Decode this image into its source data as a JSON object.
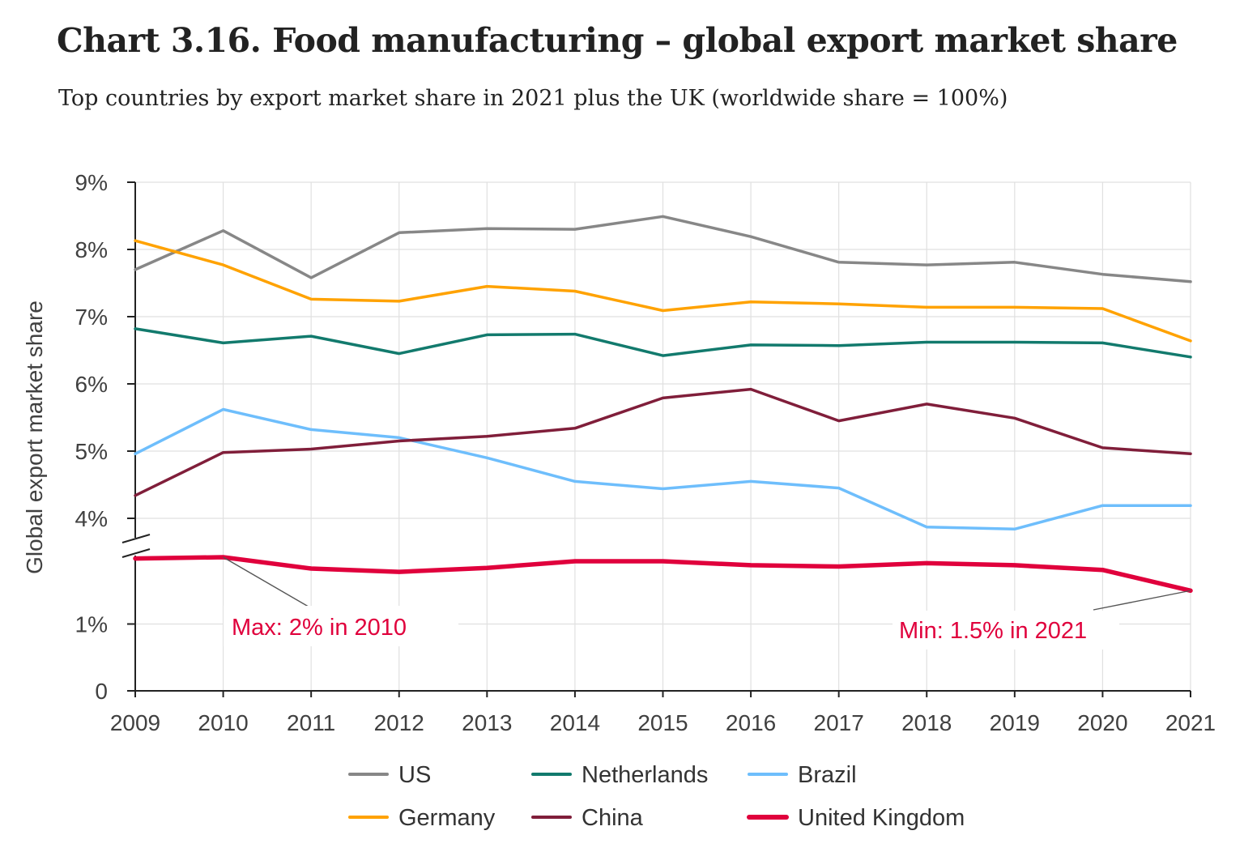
{
  "title": "Chart 3.16. Food manufacturing – global export market share",
  "subtitle": "Top countries by export market share in 2021 plus the UK (worldwide share = 100%)",
  "chart_data": {
    "type": "line",
    "ylabel": "Global export market share",
    "y_axis_break": "between 1% and 4%",
    "y_ticks": [
      "0",
      "1%",
      "4%",
      "5%",
      "6%",
      "7%",
      "8%",
      "9%"
    ],
    "y_tick_values": [
      0,
      1,
      4,
      5,
      6,
      7,
      8,
      9
    ],
    "x": [
      "2009",
      "2010",
      "2011",
      "2012",
      "2013",
      "2014",
      "2015",
      "2016",
      "2017",
      "2018",
      "2019",
      "2020",
      "2021"
    ],
    "grid": true,
    "legend_position": "bottom",
    "series": [
      {
        "name": "US",
        "color": "#878787",
        "values": [
          7.7,
          8.28,
          7.58,
          8.25,
          8.31,
          8.3,
          8.49,
          8.19,
          7.81,
          7.77,
          7.81,
          7.63,
          7.52
        ]
      },
      {
        "name": "Netherlands",
        "color": "#127a6d",
        "values": [
          6.82,
          6.61,
          6.71,
          6.45,
          6.73,
          6.74,
          6.42,
          6.58,
          6.57,
          6.62,
          6.62,
          6.61,
          6.4
        ]
      },
      {
        "name": "Brazil",
        "color": "#6ebefc",
        "values": [
          4.96,
          5.62,
          5.32,
          5.2,
          4.9,
          4.55,
          4.44,
          4.55,
          4.45,
          3.87,
          3.84,
          4.19,
          4.19
        ]
      },
      {
        "name": "Germany",
        "color": "#ffa200",
        "values": [
          8.13,
          7.77,
          7.26,
          7.23,
          7.45,
          7.38,
          7.09,
          7.22,
          7.19,
          7.14,
          7.14,
          7.12,
          6.64
        ]
      },
      {
        "name": "China",
        "color": "#801e3a",
        "values": [
          4.34,
          4.98,
          5.03,
          5.15,
          5.22,
          5.34,
          5.79,
          5.92,
          5.45,
          5.7,
          5.49,
          5.05,
          4.96
        ]
      },
      {
        "name": "United Kingdom",
        "color": "#e0003c",
        "values": [
          1.98,
          2.0,
          1.83,
          1.78,
          1.84,
          1.94,
          1.94,
          1.88,
          1.86,
          1.91,
          1.88,
          1.81,
          1.5
        ]
      }
    ],
    "annotations": [
      {
        "text": "Max: 2% in 2010"
      },
      {
        "text": "Min: 1.5% in 2021"
      }
    ]
  }
}
